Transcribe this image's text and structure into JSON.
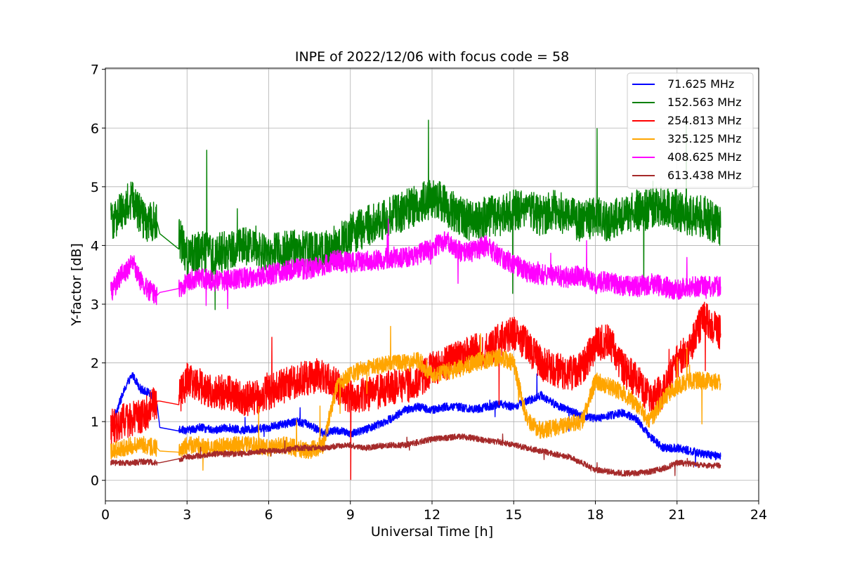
{
  "chart_data": {
    "type": "line",
    "title": "INPE of 2022/12/06 with focus code = 58",
    "xlabel": "Universal Time [h]",
    "ylabel": "Y-factor [dB]",
    "xlim": [
      0,
      24
    ],
    "ylim": [
      -0.35,
      7.02
    ],
    "xticks": [
      0,
      3,
      6,
      9,
      12,
      15,
      18,
      21,
      24
    ],
    "xtick_labels": [
      "0",
      "3",
      "6",
      "9",
      "12",
      "15",
      "18",
      "21",
      "24"
    ],
    "yticks": [
      0,
      1,
      2,
      3,
      4,
      5,
      6,
      7
    ],
    "ytick_labels": [
      "0",
      "1",
      "2",
      "3",
      "4",
      "5",
      "6",
      "7"
    ],
    "grid": true,
    "legend_position": "top-right",
    "series": [
      {
        "name": " 71.625 MHz",
        "color": "#0000ff",
        "noise": 0.07,
        "x": [
          0.2,
          0.5,
          0.8,
          1.0,
          1.3,
          1.6,
          1.9,
          2.0,
          2.7,
          3.0,
          3.5,
          4.0,
          4.5,
          5.0,
          5.5,
          6.0,
          6.5,
          7.0,
          7.5,
          8.0,
          8.5,
          9.0,
          9.5,
          10.0,
          10.5,
          11.0,
          11.5,
          12.0,
          12.5,
          13.0,
          13.5,
          14.0,
          14.5,
          15.0,
          15.5,
          16.0,
          16.5,
          17.0,
          17.5,
          18.0,
          18.5,
          19.0,
          19.5,
          20.0,
          20.5,
          21.0,
          21.5,
          22.0,
          22.6
        ],
        "y": [
          0.9,
          1.3,
          1.65,
          1.8,
          1.55,
          1.5,
          1.3,
          0.9,
          0.88,
          0.85,
          0.9,
          0.85,
          0.9,
          0.85,
          0.88,
          0.9,
          0.95,
          1.0,
          0.95,
          0.8,
          0.85,
          0.8,
          0.85,
          0.95,
          1.05,
          1.2,
          1.25,
          1.2,
          1.25,
          1.25,
          1.2,
          1.25,
          1.3,
          1.25,
          1.35,
          1.45,
          1.3,
          1.2,
          1.1,
          1.05,
          1.1,
          1.15,
          1.05,
          0.75,
          0.55,
          0.55,
          0.5,
          0.45,
          0.4
        ]
      },
      {
        "name": "152.563 MHz",
        "color": "#008000",
        "noise": 0.35,
        "x": [
          0.2,
          0.6,
          1.0,
          1.4,
          1.9,
          2.0,
          2.7,
          3.0,
          3.5,
          4.0,
          4.5,
          5.0,
          5.5,
          6.0,
          6.5,
          7.0,
          7.5,
          8.0,
          8.5,
          9.0,
          9.5,
          10.0,
          10.5,
          11.0,
          11.5,
          12.0,
          12.5,
          13.0,
          13.5,
          14.0,
          14.5,
          15.0,
          15.5,
          16.0,
          16.5,
          17.0,
          17.5,
          18.0,
          18.5,
          19.0,
          19.5,
          20.0,
          20.5,
          21.0,
          21.5,
          22.0,
          22.6
        ],
        "y": [
          4.4,
          4.6,
          4.8,
          4.4,
          4.4,
          4.2,
          4.15,
          3.8,
          3.9,
          3.85,
          3.9,
          4.0,
          4.0,
          3.85,
          3.9,
          3.95,
          3.9,
          3.9,
          4.0,
          4.2,
          4.3,
          4.4,
          4.5,
          4.6,
          4.7,
          4.8,
          4.7,
          4.5,
          4.4,
          4.5,
          4.5,
          4.6,
          4.6,
          4.5,
          4.6,
          4.5,
          4.4,
          4.5,
          4.4,
          4.5,
          4.6,
          4.6,
          4.7,
          4.6,
          4.5,
          4.5,
          4.3
        ]
      },
      {
        "name": "254.813 MHz",
        "color": "#ff0000",
        "noise": 0.3,
        "x": [
          0.2,
          0.6,
          1.0,
          1.4,
          1.9,
          2.0,
          2.7,
          3.0,
          3.5,
          4.0,
          4.5,
          5.0,
          5.5,
          6.0,
          6.5,
          7.0,
          7.5,
          8.0,
          8.5,
          9.0,
          9.5,
          10.0,
          10.5,
          11.0,
          11.5,
          12.0,
          12.5,
          13.0,
          13.5,
          14.0,
          14.5,
          15.0,
          15.5,
          16.0,
          16.5,
          17.0,
          17.5,
          18.0,
          18.5,
          19.0,
          19.5,
          20.0,
          20.5,
          21.0,
          21.5,
          22.0,
          22.6
        ],
        "y": [
          0.9,
          1.0,
          1.05,
          1.1,
          1.35,
          1.35,
          1.4,
          1.7,
          1.6,
          1.5,
          1.5,
          1.4,
          1.4,
          1.5,
          1.6,
          1.7,
          1.75,
          1.8,
          1.6,
          1.4,
          1.45,
          1.5,
          1.6,
          1.6,
          1.7,
          1.9,
          2.0,
          2.1,
          2.2,
          2.2,
          2.4,
          2.5,
          2.3,
          2.0,
          1.9,
          1.8,
          1.9,
          2.3,
          2.4,
          1.9,
          1.7,
          1.4,
          1.5,
          2.0,
          2.3,
          2.8,
          2.5
        ]
      },
      {
        "name": "325.125 MHz",
        "color": "#ffa500",
        "noise": 0.15,
        "x": [
          0.2,
          0.6,
          1.0,
          1.4,
          1.9,
          2.0,
          2.7,
          3.0,
          3.5,
          4.0,
          4.5,
          5.0,
          5.5,
          6.0,
          6.5,
          7.0,
          7.5,
          8.0,
          8.5,
          9.0,
          9.5,
          10.0,
          10.5,
          11.0,
          11.5,
          12.0,
          12.5,
          13.0,
          13.5,
          14.0,
          14.5,
          15.0,
          15.5,
          16.0,
          16.5,
          17.0,
          17.5,
          18.0,
          18.5,
          19.0,
          19.5,
          20.0,
          20.5,
          21.0,
          21.5,
          22.0,
          22.6
        ],
        "y": [
          0.5,
          0.55,
          0.6,
          0.6,
          0.55,
          0.5,
          0.5,
          0.6,
          0.6,
          0.55,
          0.6,
          0.6,
          0.6,
          0.55,
          0.6,
          0.55,
          0.5,
          0.6,
          1.6,
          1.8,
          1.9,
          1.95,
          2.0,
          2.0,
          2.05,
          1.8,
          1.85,
          1.9,
          2.0,
          2.05,
          2.1,
          2.0,
          1.0,
          0.85,
          0.9,
          0.95,
          1.0,
          1.7,
          1.6,
          1.5,
          1.3,
          1.0,
          1.4,
          1.6,
          1.7,
          1.7,
          1.65
        ]
      },
      {
        "name": "408.625 MHz",
        "color": "#ff00ff",
        "noise": 0.18,
        "x": [
          0.2,
          0.6,
          1.0,
          1.4,
          1.9,
          2.0,
          2.7,
          3.0,
          3.5,
          4.0,
          4.5,
          5.0,
          5.5,
          6.0,
          6.5,
          7.0,
          7.5,
          8.0,
          8.5,
          9.0,
          9.5,
          10.0,
          10.5,
          11.0,
          11.5,
          12.0,
          12.5,
          13.0,
          13.5,
          14.0,
          14.5,
          15.0,
          15.5,
          16.0,
          16.5,
          17.0,
          17.5,
          18.0,
          18.5,
          19.0,
          19.5,
          20.0,
          20.5,
          21.0,
          21.5,
          22.0,
          22.6
        ],
        "y": [
          3.2,
          3.5,
          3.7,
          3.3,
          3.15,
          3.2,
          3.25,
          3.4,
          3.45,
          3.4,
          3.4,
          3.45,
          3.45,
          3.5,
          3.55,
          3.6,
          3.6,
          3.65,
          3.75,
          3.7,
          3.75,
          3.75,
          3.8,
          3.8,
          3.85,
          3.95,
          4.1,
          3.9,
          3.9,
          4.0,
          3.8,
          3.7,
          3.55,
          3.5,
          3.5,
          3.45,
          3.5,
          3.35,
          3.4,
          3.3,
          3.3,
          3.35,
          3.3,
          3.25,
          3.3,
          3.3,
          3.3
        ]
      },
      {
        "name": "613.438 MHz",
        "color": "#a52a2a",
        "noise": 0.05,
        "x": [
          0.2,
          0.6,
          1.0,
          1.4,
          1.9,
          2.0,
          2.7,
          3.0,
          3.5,
          4.0,
          4.5,
          5.0,
          5.5,
          6.0,
          6.5,
          7.0,
          7.5,
          8.0,
          8.5,
          9.0,
          9.5,
          10.0,
          10.5,
          11.0,
          11.5,
          12.0,
          12.5,
          13.0,
          13.5,
          14.0,
          14.5,
          15.0,
          15.5,
          16.0,
          16.5,
          17.0,
          17.5,
          18.0,
          18.5,
          19.0,
          19.5,
          20.0,
          20.5,
          21.0,
          21.5,
          22.0,
          22.6
        ],
        "y": [
          0.3,
          0.3,
          0.3,
          0.32,
          0.3,
          0.3,
          0.35,
          0.4,
          0.42,
          0.45,
          0.45,
          0.45,
          0.48,
          0.5,
          0.5,
          0.55,
          0.55,
          0.55,
          0.58,
          0.6,
          0.55,
          0.58,
          0.6,
          0.6,
          0.65,
          0.7,
          0.72,
          0.75,
          0.72,
          0.68,
          0.65,
          0.6,
          0.55,
          0.5,
          0.45,
          0.4,
          0.3,
          0.18,
          0.15,
          0.12,
          0.12,
          0.15,
          0.2,
          0.3,
          0.28,
          0.25,
          0.25
        ]
      }
    ]
  }
}
